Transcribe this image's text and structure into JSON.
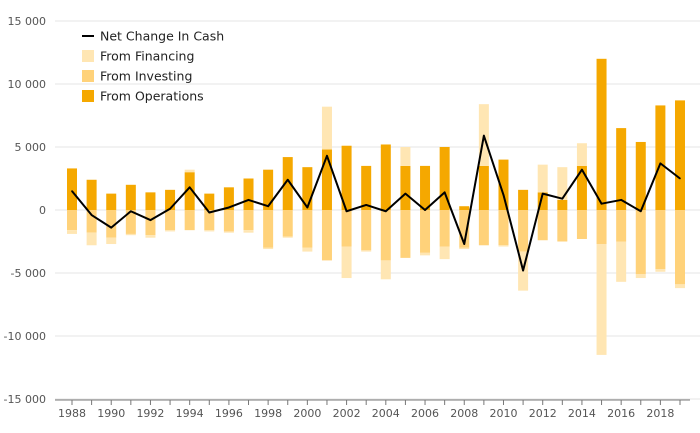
{
  "chart_data": {
    "type": "bar",
    "title": "",
    "xlabel": "",
    "ylabel": "",
    "ylim": [
      -15000,
      15000
    ],
    "yticks": [
      -15000,
      -10000,
      -5000,
      0,
      5000,
      10000,
      15000
    ],
    "ytick_labels": [
      "-15 000",
      "-10 000",
      "-5 000",
      "0",
      "5 000",
      "10 000",
      "15 000"
    ],
    "x": [
      1988,
      1989,
      1990,
      1991,
      1992,
      1993,
      1994,
      1995,
      1996,
      1997,
      1998,
      1999,
      2000,
      2001,
      2002,
      2003,
      2004,
      2005,
      2006,
      2007,
      2008,
      2009,
      2010,
      2011,
      2012,
      2013,
      2014,
      2015,
      2016,
      2017,
      2018,
      2019
    ],
    "xticks": [
      1988,
      1990,
      1992,
      1994,
      1996,
      1998,
      2000,
      2002,
      2004,
      2006,
      2008,
      2010,
      2012,
      2014,
      2016,
      2018
    ],
    "grid": true,
    "legend_position": "top-left",
    "series": [
      {
        "name": "From Financing",
        "kind": "stacked-bar",
        "color": "#ffe6b3",
        "values": [
          -300,
          -1000,
          -500,
          -100,
          -200,
          -100,
          200,
          -100,
          -100,
          -200,
          -100,
          -100,
          -300,
          3400,
          -2500,
          -100,
          -1500,
          1500,
          -200,
          -1000,
          -100,
          4900,
          -100,
          -3100,
          2200,
          2600,
          1800,
          -8800,
          -3200,
          -300,
          -200,
          -300
        ]
      },
      {
        "name": "From Investing",
        "kind": "stacked-bar",
        "color": "#ffd27a",
        "values": [
          -1600,
          -1800,
          -2200,
          -1900,
          -2000,
          -1600,
          -1600,
          -1600,
          -1700,
          -1600,
          -3000,
          -2100,
          -3000,
          -4000,
          -2900,
          -3200,
          -4000,
          -3800,
          -3400,
          -2900,
          -3000,
          -2800,
          -2800,
          -3300,
          -2400,
          -2500,
          -2300,
          -2700,
          -2500,
          -5100,
          -4700,
          -5900
        ]
      },
      {
        "name": "From Operations",
        "kind": "stacked-bar",
        "color": "#f5a800",
        "values": [
          3300,
          2400,
          1300,
          2000,
          1400,
          1600,
          3000,
          1300,
          1800,
          2500,
          3200,
          4200,
          3400,
          4800,
          5100,
          3500,
          5200,
          3500,
          3500,
          5000,
          300,
          3500,
          4000,
          1600,
          1400,
          800,
          3500,
          12000,
          6500,
          5400,
          8300,
          8700
        ]
      },
      {
        "name": "Net Change In Cash",
        "kind": "line",
        "color": "#000000",
        "values": [
          1500,
          -400,
          -1400,
          -100,
          -800,
          100,
          1800,
          -200,
          200,
          800,
          300,
          2400,
          200,
          4300,
          -100,
          400,
          -100,
          1300,
          0,
          1400,
          -2700,
          5900,
          1200,
          -4800,
          1300,
          900,
          3200,
          500,
          800,
          -100,
          3700,
          2500
        ]
      }
    ]
  }
}
